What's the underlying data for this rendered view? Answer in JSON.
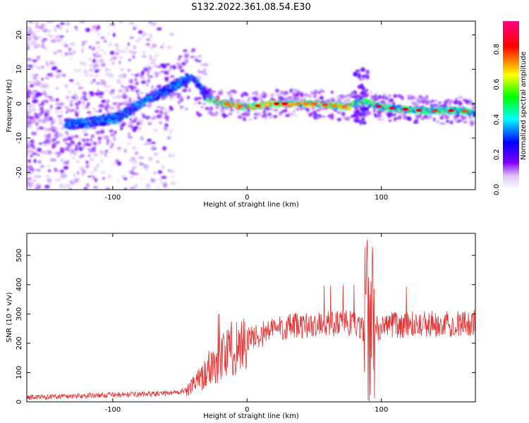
{
  "title": "S132.2022.361.08.54.E30",
  "chart_data": [
    {
      "type": "heatmap",
      "xlabel": "Height of straight line (km)",
      "ylabel": "Frequency (Hz)",
      "xlim": [
        -164,
        170
      ],
      "ylim": [
        -25,
        24
      ],
      "xticks": [
        -100,
        0,
        100
      ],
      "yticks": [
        -20,
        -10,
        0,
        10,
        20
      ],
      "ridge": [
        {
          "x": -130,
          "y": -6
        },
        {
          "x": -110,
          "y": -5
        },
        {
          "x": -95,
          "y": -4
        },
        {
          "x": -80,
          "y": 0
        },
        {
          "x": -65,
          "y": 3
        },
        {
          "x": -50,
          "y": 6
        },
        {
          "x": -42,
          "y": 8
        },
        {
          "x": -35,
          "y": 5
        },
        {
          "x": -28,
          "y": 1
        },
        {
          "x": -15,
          "y": 0
        },
        {
          "x": 0,
          "y": -1
        },
        {
          "x": 20,
          "y": 0
        },
        {
          "x": 50,
          "y": 0
        },
        {
          "x": 75,
          "y": -1
        },
        {
          "x": 85,
          "y": 1
        },
        {
          "x": 100,
          "y": -1
        },
        {
          "x": 130,
          "y": -2
        },
        {
          "x": 160,
          "y": -2
        },
        {
          "x": 170,
          "y": -3
        }
      ],
      "colorbar": {
        "label": "Normalized spectral amplitude",
        "ticks": [
          0.0,
          0.2,
          0.4,
          0.6,
          0.8
        ],
        "range": [
          0.0,
          0.96
        ],
        "colors": [
          "#f0e0f8",
          "#8000ff",
          "#0000ff",
          "#00ffff",
          "#00ff00",
          "#ffff00",
          "#ff0000",
          "#ff0080"
        ]
      }
    },
    {
      "type": "line",
      "xlabel": "Height of straight line (km)",
      "ylabel": "SNR (10 * v/v)",
      "xlim": [
        -164,
        170
      ],
      "ylim": [
        0,
        575
      ],
      "xticks": [
        -100,
        0,
        100
      ],
      "yticks": [
        0,
        100,
        200,
        300,
        400,
        500
      ],
      "color": "#e83030",
      "envelope": [
        {
          "x": -164,
          "y": 12
        },
        {
          "x": -100,
          "y": 20
        },
        {
          "x": -60,
          "y": 25
        },
        {
          "x": -45,
          "y": 35
        },
        {
          "x": -35,
          "y": 80
        },
        {
          "x": -25,
          "y": 130
        },
        {
          "x": -15,
          "y": 170
        },
        {
          "x": 0,
          "y": 210
        },
        {
          "x": 20,
          "y": 250
        },
        {
          "x": 50,
          "y": 265
        },
        {
          "x": 80,
          "y": 270
        },
        {
          "x": 90,
          "y": 230
        },
        {
          "x": 100,
          "y": 260
        },
        {
          "x": 130,
          "y": 265
        },
        {
          "x": 170,
          "y": 270
        }
      ]
    }
  ]
}
